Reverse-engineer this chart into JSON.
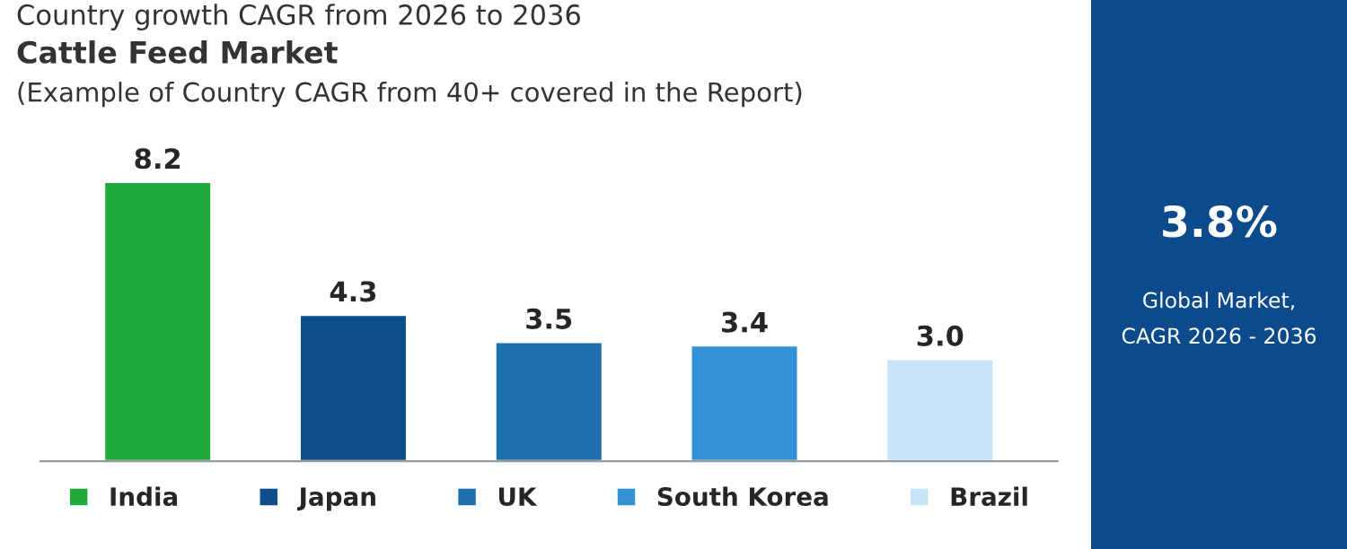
{
  "chart_data": [
    {
      "type": "bar",
      "title": "Country growth CAGR from 2026 to 2036",
      "subtitle": "Cattle Feed Market",
      "annotations": [
        "(Example of Country CAGR from 40+ covered in the Report)"
      ],
      "categories": [
        null,
        null,
        null,
        null,
        null
      ],
      "stacked": true,
      "series": [
        {
          "name": "India",
          "color": "#22a93b",
          "values": [
            8.2,
            null,
            null,
            null,
            null
          ],
          "value_labels": [
            "8.2",
            null,
            null,
            null,
            null
          ]
        },
        {
          "name": "Japan",
          "color": "#0c4f8a",
          "values": [
            null,
            4.3,
            null,
            null,
            null
          ],
          "value_labels": [
            null,
            "4.3",
            null,
            null,
            null
          ]
        },
        {
          "name": "UK",
          "color": "#1d6fae",
          "values": [
            null,
            null,
            3.5,
            null,
            null
          ],
          "value_labels": [
            null,
            null,
            "3.5",
            null,
            null
          ]
        },
        {
          "name": "South Korea",
          "color": "#3393d6",
          "values": [
            null,
            null,
            null,
            3.4,
            null
          ],
          "value_labels": [
            null,
            null,
            null,
            "3.4",
            null
          ]
        },
        {
          "name": "Brazil",
          "color": "#c6e4f5",
          "values": [
            null,
            null,
            null,
            null,
            3.0
          ],
          "value_labels": [
            null,
            null,
            null,
            null,
            "3.0"
          ]
        }
      ],
      "legend": "bottom"
    },
    {
      "type": "other",
      "title": "3.8%",
      "annotations": [
        "Global Market,",
        "CAGR 2026 - 2036"
      ]
    }
  ]
}
